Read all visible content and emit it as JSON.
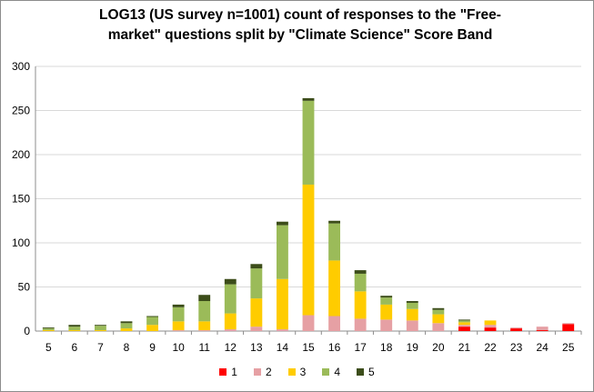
{
  "chart_data": {
    "type": "bar",
    "stacked": true,
    "title_line1": "LOG13 (US survey n=1001) count of responses to the \"Free-",
    "title_line2": "market\" questions split by \"Climate Science\" Score Band",
    "xlabel": "",
    "ylabel": "",
    "ylim": [
      0,
      300
    ],
    "yticks": [
      0,
      50,
      100,
      150,
      200,
      250,
      300
    ],
    "grid": true,
    "legend_position": "bottom",
    "categories": [
      "5",
      "6",
      "7",
      "8",
      "9",
      "10",
      "11",
      "12",
      "13",
      "14",
      "15",
      "16",
      "17",
      "18",
      "19",
      "20",
      "21",
      "22",
      "23",
      "24",
      "25"
    ],
    "series": [
      {
        "name": "1",
        "color": "#ff0000",
        "values": [
          0,
          0,
          0,
          0,
          0,
          0,
          0,
          0,
          0,
          0,
          0,
          0,
          0,
          0,
          0,
          0,
          5,
          4,
          3,
          1,
          8
        ]
      },
      {
        "name": "2",
        "color": "#e6a0a4",
        "values": [
          0,
          0,
          0,
          0,
          0,
          1,
          1,
          2,
          5,
          2,
          18,
          17,
          14,
          13,
          12,
          9,
          2,
          3,
          1,
          4,
          1
        ]
      },
      {
        "name": "3",
        "color": "#ffcc00",
        "values": [
          1,
          1,
          1,
          3,
          7,
          10,
          10,
          18,
          32,
          57,
          148,
          63,
          31,
          17,
          13,
          10,
          3,
          5,
          0,
          0,
          0
        ]
      },
      {
        "name": "4",
        "color": "#9bbb59",
        "values": [
          2,
          4,
          5,
          6,
          9,
          16,
          23,
          33,
          34,
          61,
          95,
          42,
          20,
          8,
          7,
          5,
          2,
          0,
          0,
          0,
          0
        ]
      },
      {
        "name": "5",
        "color": "#3c4d1a",
        "values": [
          1,
          2,
          1,
          2,
          1,
          3,
          7,
          6,
          5,
          4,
          3,
          3,
          4,
          2,
          2,
          2,
          1,
          0,
          0,
          0,
          0
        ]
      }
    ]
  }
}
